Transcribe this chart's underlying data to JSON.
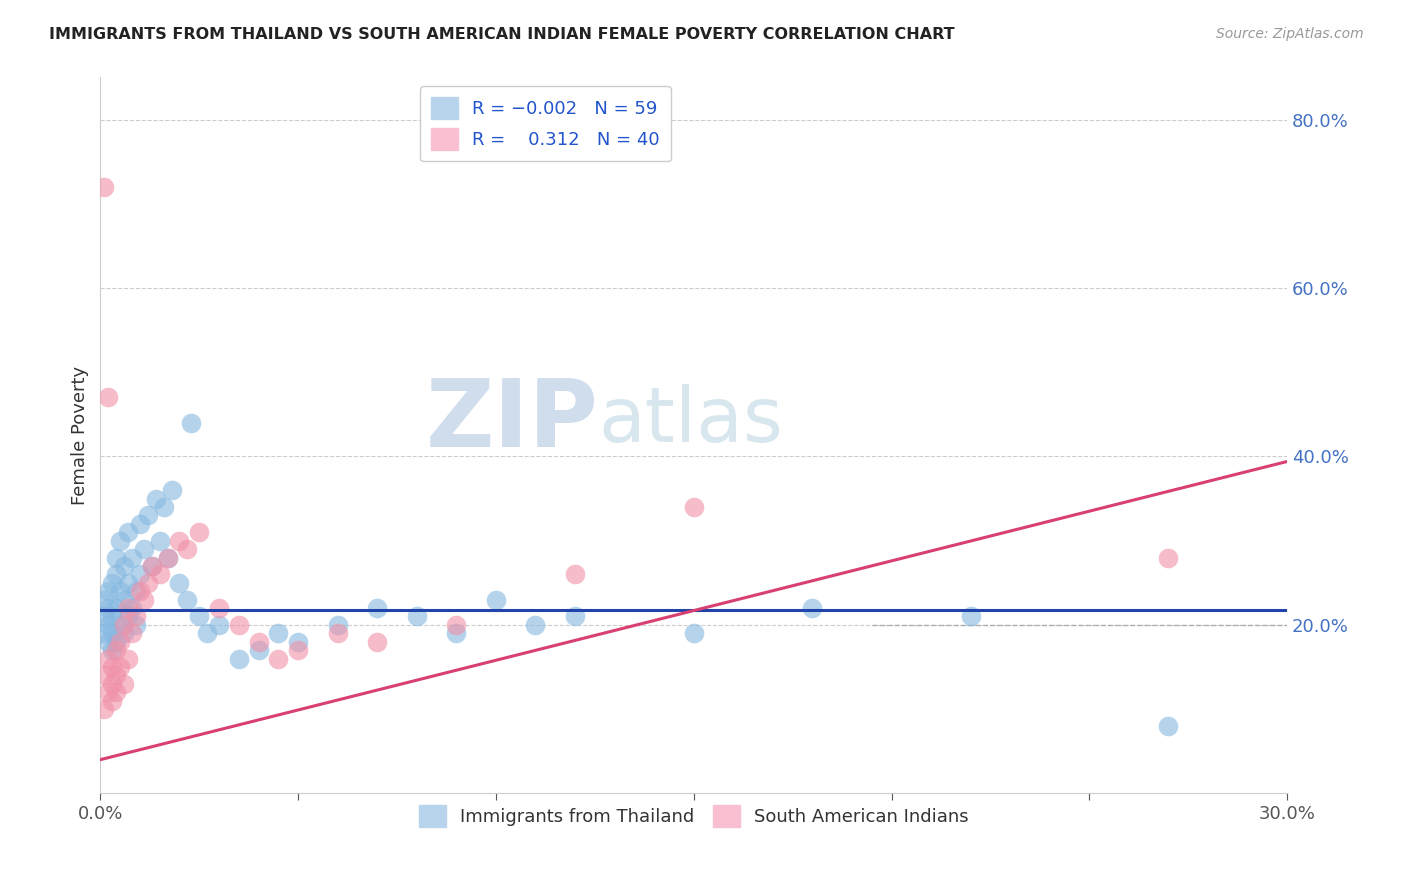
{
  "title": "IMMIGRANTS FROM THAILAND VS SOUTH AMERICAN INDIAN FEMALE POVERTY CORRELATION CHART",
  "source": "Source: ZipAtlas.com",
  "ylabel": "Female Poverty",
  "xlim": [
    0.0,
    0.3
  ],
  "ylim": [
    0.0,
    0.85
  ],
  "legend_label1": "Immigrants from Thailand",
  "legend_label2": "South American Indians",
  "color_blue": "#85b8e0",
  "color_pink": "#f090a8",
  "color_blue_edge": "#85b8e0",
  "color_pink_edge": "#f090a8",
  "trendline_blue_color": "#2244aa",
  "trendline_pink_color": "#d84070",
  "watermark_zip": "ZIP",
  "watermark_atlas": "atlas",
  "blue_R": -0.002,
  "blue_N": 59,
  "pink_R": 0.312,
  "pink_N": 40,
  "blue_trend_y_intercept": 0.218,
  "blue_trend_slope": 0.0,
  "pink_trend_y_intercept": 0.04,
  "pink_trend_slope": 1.18,
  "blue_x": [
    0.001,
    0.001,
    0.001,
    0.002,
    0.002,
    0.002,
    0.002,
    0.003,
    0.003,
    0.003,
    0.003,
    0.004,
    0.004,
    0.004,
    0.004,
    0.005,
    0.005,
    0.005,
    0.006,
    0.006,
    0.006,
    0.007,
    0.007,
    0.007,
    0.008,
    0.008,
    0.009,
    0.009,
    0.01,
    0.01,
    0.011,
    0.012,
    0.013,
    0.014,
    0.015,
    0.016,
    0.017,
    0.018,
    0.02,
    0.022,
    0.023,
    0.025,
    0.027,
    0.03,
    0.035,
    0.04,
    0.045,
    0.05,
    0.06,
    0.07,
    0.08,
    0.09,
    0.1,
    0.11,
    0.12,
    0.15,
    0.18,
    0.22,
    0.27
  ],
  "blue_y": [
    0.19,
    0.21,
    0.23,
    0.18,
    0.2,
    0.22,
    0.24,
    0.17,
    0.19,
    0.21,
    0.25,
    0.18,
    0.22,
    0.26,
    0.28,
    0.2,
    0.24,
    0.3,
    0.19,
    0.23,
    0.27,
    0.21,
    0.25,
    0.31,
    0.22,
    0.28,
    0.2,
    0.24,
    0.26,
    0.32,
    0.29,
    0.33,
    0.27,
    0.35,
    0.3,
    0.34,
    0.28,
    0.36,
    0.25,
    0.23,
    0.44,
    0.21,
    0.19,
    0.2,
    0.16,
    0.17,
    0.19,
    0.18,
    0.2,
    0.22,
    0.21,
    0.19,
    0.23,
    0.2,
    0.21,
    0.19,
    0.22,
    0.21,
    0.08
  ],
  "pink_x": [
    0.001,
    0.001,
    0.001,
    0.002,
    0.002,
    0.002,
    0.003,
    0.003,
    0.003,
    0.004,
    0.004,
    0.004,
    0.005,
    0.005,
    0.006,
    0.006,
    0.007,
    0.007,
    0.008,
    0.009,
    0.01,
    0.011,
    0.012,
    0.013,
    0.015,
    0.017,
    0.02,
    0.022,
    0.025,
    0.03,
    0.035,
    0.04,
    0.045,
    0.05,
    0.06,
    0.07,
    0.09,
    0.12,
    0.15,
    0.27
  ],
  "pink_y": [
    0.72,
    0.14,
    0.1,
    0.47,
    0.16,
    0.12,
    0.15,
    0.13,
    0.11,
    0.17,
    0.14,
    0.12,
    0.18,
    0.15,
    0.2,
    0.13,
    0.22,
    0.16,
    0.19,
    0.21,
    0.24,
    0.23,
    0.25,
    0.27,
    0.26,
    0.28,
    0.3,
    0.29,
    0.31,
    0.22,
    0.2,
    0.18,
    0.16,
    0.17,
    0.19,
    0.18,
    0.2,
    0.26,
    0.34,
    0.28
  ]
}
